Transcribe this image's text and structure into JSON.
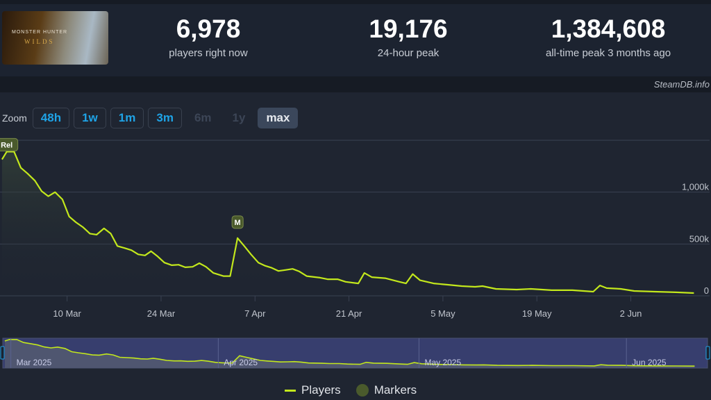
{
  "header": {
    "game_cover_text": [
      "MONSTER HUNTER",
      "WILDS"
    ],
    "stats": [
      {
        "value": "6,978",
        "label": "players right now"
      },
      {
        "value": "19,176",
        "label": "24-hour peak"
      },
      {
        "value": "1,384,608",
        "label": "all-time peak 3 months ago"
      }
    ]
  },
  "credit": "SteamDB.info",
  "zoom": {
    "label": "Zoom",
    "buttons": [
      {
        "label": "48h",
        "state": "enabled"
      },
      {
        "label": "1w",
        "state": "enabled"
      },
      {
        "label": "1m",
        "state": "enabled"
      },
      {
        "label": "3m",
        "state": "enabled"
      },
      {
        "label": "6m",
        "state": "disabled"
      },
      {
        "label": "1y",
        "state": "disabled"
      },
      {
        "label": "max",
        "state": "active"
      }
    ]
  },
  "chart_data": {
    "type": "line",
    "x_unit": "days since 28 Feb 2025",
    "ylim": [
      0,
      1500
    ],
    "y_unit": "thousands of players",
    "yticks": [
      {
        "v": 0,
        "label": "0"
      },
      {
        "v": 500,
        "label": "500k"
      },
      {
        "v": 1000,
        "label": "1,000k"
      },
      {
        "v": 1500,
        "label": ""
      }
    ],
    "xticks": [
      {
        "d": 10,
        "label": "10 Mar"
      },
      {
        "d": 24,
        "label": "24 Mar"
      },
      {
        "d": 38,
        "label": "7 Apr"
      },
      {
        "d": 52,
        "label": "21 Apr"
      },
      {
        "d": 66,
        "label": "5 May"
      },
      {
        "d": 80,
        "label": "19 May"
      },
      {
        "d": 94,
        "label": "2 Jun"
      }
    ],
    "xlim": [
      0,
      104.5
    ],
    "navigator_labels": [
      {
        "d": 1,
        "label": "Mar 2025"
      },
      {
        "d": 32,
        "label": "Apr 2025"
      },
      {
        "d": 62,
        "label": "May 2025"
      },
      {
        "d": 93,
        "label": "Jun 2025"
      }
    ],
    "markers": [
      {
        "d": 1,
        "v": 1390,
        "label": "Rel"
      },
      {
        "d": 35.4,
        "v": 557,
        "label": "M"
      }
    ],
    "series": [
      {
        "name": "Players",
        "color": "#c3e81c",
        "points": [
          [
            0.3,
            1315
          ],
          [
            1,
            1390
          ],
          [
            2.1,
            1390
          ],
          [
            3.1,
            1235
          ],
          [
            4.1,
            1180
          ],
          [
            5.2,
            1110
          ],
          [
            6.2,
            1010
          ],
          [
            7.2,
            960
          ],
          [
            8.2,
            1000
          ],
          [
            9.3,
            930
          ],
          [
            10.3,
            765
          ],
          [
            11.3,
            710
          ],
          [
            12.4,
            660
          ],
          [
            13.4,
            600
          ],
          [
            14.4,
            590
          ],
          [
            15.5,
            650
          ],
          [
            16.5,
            600
          ],
          [
            17.5,
            480
          ],
          [
            18.6,
            460
          ],
          [
            19.6,
            440
          ],
          [
            20.6,
            400
          ],
          [
            21.6,
            390
          ],
          [
            22.5,
            430
          ],
          [
            23.5,
            380
          ],
          [
            24.5,
            320
          ],
          [
            25.6,
            295
          ],
          [
            26.6,
            300
          ],
          [
            27.6,
            275
          ],
          [
            28.7,
            280
          ],
          [
            29.7,
            315
          ],
          [
            30.7,
            280
          ],
          [
            31.8,
            220
          ],
          [
            32.8,
            200
          ],
          [
            33.3,
            190
          ],
          [
            34.3,
            190
          ],
          [
            35.4,
            557
          ],
          [
            36.4,
            480
          ],
          [
            37.4,
            400
          ],
          [
            38.5,
            320
          ],
          [
            39.5,
            290
          ],
          [
            40.5,
            270
          ],
          [
            41.5,
            240
          ],
          [
            42.6,
            250
          ],
          [
            43.6,
            260
          ],
          [
            44.6,
            235
          ],
          [
            45.7,
            190
          ],
          [
            47.7,
            175
          ],
          [
            48.8,
            160
          ],
          [
            50.3,
            160
          ],
          [
            51.5,
            135
          ],
          [
            53.4,
            120
          ],
          [
            54.3,
            220
          ],
          [
            55.4,
            180
          ],
          [
            57.4,
            170
          ],
          [
            59.5,
            135
          ],
          [
            60.5,
            120
          ],
          [
            61.5,
            210
          ],
          [
            62.6,
            150
          ],
          [
            64.6,
            120
          ],
          [
            66.7,
            107
          ],
          [
            68.8,
            94
          ],
          [
            70.8,
            87
          ],
          [
            71.9,
            94
          ],
          [
            73.9,
            67
          ],
          [
            77,
            60
          ],
          [
            79.1,
            67
          ],
          [
            82.2,
            54
          ],
          [
            85.3,
            54
          ],
          [
            88.4,
            40
          ],
          [
            89.4,
            100
          ],
          [
            90.4,
            74
          ],
          [
            92.5,
            67
          ],
          [
            94.5,
            47
          ],
          [
            97.6,
            40
          ],
          [
            100.7,
            34
          ],
          [
            103.4,
            27
          ]
        ]
      }
    ],
    "legend": [
      {
        "label": "Players",
        "color": "#c3e81c"
      },
      {
        "label": "Markers",
        "color": "#4a5a2c"
      }
    ],
    "legend_position": "bottom-center"
  }
}
